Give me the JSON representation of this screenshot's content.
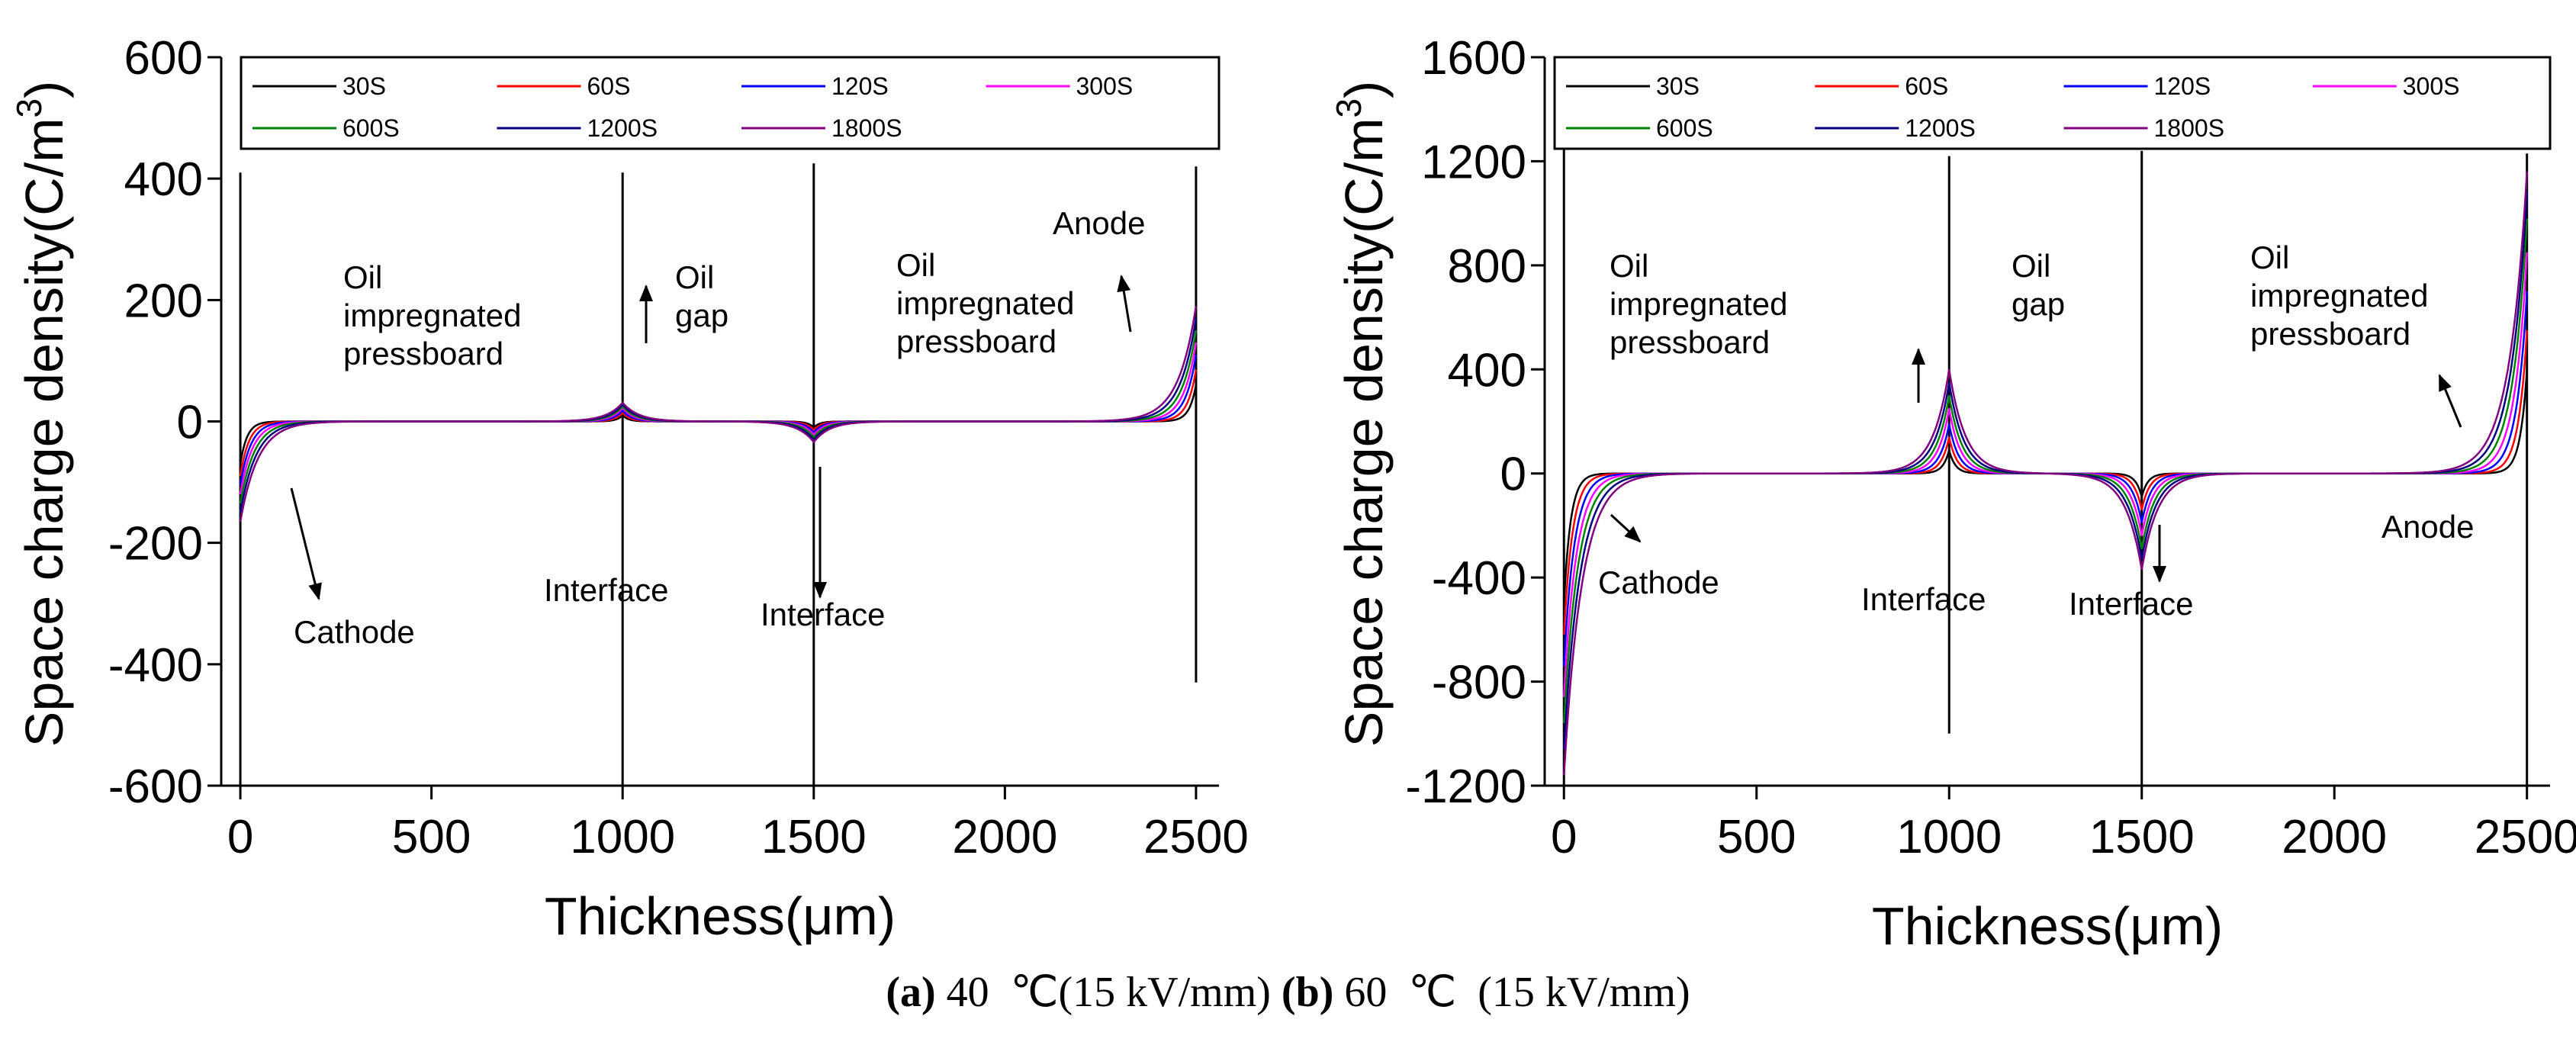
{
  "caption": {
    "a_label": "(a)",
    "a_text": " 40  ℃(15 kV/mm) ",
    "b_label": "(b)",
    "b_text": " 60  ℃  (15 kV/mm)"
  },
  "chart_data": [
    {
      "type": "line",
      "panel": "a",
      "xlabel": "Thickness(μm)",
      "ylabel": "Space charge density(C/m³)",
      "ylabel_base": "Space charge density(C/m",
      "ylabel_sup": "3",
      "ylabel_close": ")",
      "xlim": [
        -50,
        2560
      ],
      "ylim": [
        -600,
        600
      ],
      "xticks": [
        0,
        500,
        1000,
        1500,
        2000,
        2500
      ],
      "yticks": [
        600,
        400,
        200,
        0,
        -200,
        -400,
        -600
      ],
      "interfaces": [
        0,
        1000,
        1500,
        2500
      ],
      "boundary_lines": [
        {
          "x": 0,
          "y_from": -600,
          "y_to": 410
        },
        {
          "x": 1000,
          "y_from": -600,
          "y_to": 410
        },
        {
          "x": 1500,
          "y_from": -600,
          "y_to": 425
        },
        {
          "x": 2500,
          "y_from": -430,
          "y_to": 420
        }
      ],
      "peaks": [
        {
          "x": 0,
          "values": [
            -70,
            -90,
            -105,
            -120,
            -135,
            -150,
            -165
          ],
          "decay_side": "right"
        },
        {
          "x": 1000,
          "values": [
            10,
            14,
            18,
            22,
            25,
            28,
            31
          ],
          "decay_side": "both"
        },
        {
          "x": 1500,
          "values": [
            -10,
            -14,
            -18,
            -22,
            -26,
            -30,
            -34
          ],
          "decay_side": "both"
        },
        {
          "x": 2500,
          "values": [
            60,
            85,
            110,
            130,
            150,
            170,
            190
          ],
          "decay_side": "left"
        }
      ],
      "series": [
        {
          "name": "30S",
          "color": "#000000"
        },
        {
          "name": "60S",
          "color": "#ff0000"
        },
        {
          "name": "120S",
          "color": "#0000ff"
        },
        {
          "name": "300S",
          "color": "#ff00ff"
        },
        {
          "name": "600S",
          "color": "#008000"
        },
        {
          "name": "1200S",
          "color": "#000080"
        },
        {
          "name": "1800S",
          "color": "#800080"
        }
      ],
      "annotations": [
        {
          "id": "pressboard-left",
          "lines": [
            "Oil",
            "impregnated",
            "pressboard"
          ]
        },
        {
          "id": "oil-gap",
          "lines": [
            "Oil",
            "gap"
          ]
        },
        {
          "id": "pressboard-right",
          "lines": [
            "Oil",
            "impregnated",
            "pressboard"
          ]
        },
        {
          "id": "anode",
          "lines": [
            "Anode"
          ]
        },
        {
          "id": "cathode",
          "lines": [
            "Cathode"
          ]
        },
        {
          "id": "interface-1",
          "lines": [
            "Interface"
          ]
        },
        {
          "id": "interface-2",
          "lines": [
            "Interface"
          ]
        }
      ]
    },
    {
      "type": "line",
      "panel": "b",
      "xlabel": "Thickness(μm)",
      "ylabel": "Space charge density(C/m³)",
      "ylabel_base": "Space charge density(C/m",
      "ylabel_sup": "3",
      "ylabel_close": ")",
      "xlim": [
        -50,
        2560
      ],
      "ylim": [
        -1200,
        1600
      ],
      "xticks": [
        0,
        500,
        1000,
        1500,
        2000,
        2500
      ],
      "yticks": [
        1600,
        1200,
        800,
        400,
        0,
        -400,
        -800,
        -1200
      ],
      "interfaces": [
        0,
        1000,
        1500,
        2500
      ],
      "boundary_lines": [
        {
          "x": 0,
          "y_from": -1200,
          "y_to": 1250
        },
        {
          "x": 1000,
          "y_from": -1000,
          "y_to": 1220
        },
        {
          "x": 1500,
          "y_from": -1200,
          "y_to": 1240
        },
        {
          "x": 2500,
          "y_from": -1200,
          "y_to": 1230
        }
      ],
      "peaks": [
        {
          "x": 0,
          "values": [
            -500,
            -620,
            -740,
            -860,
            -960,
            -1060,
            -1160
          ],
          "decay_side": "right"
        },
        {
          "x": 1000,
          "values": [
            90,
            140,
            190,
            250,
            300,
            350,
            400
          ],
          "decay_side": "both"
        },
        {
          "x": 1500,
          "values": [
            -90,
            -140,
            -190,
            -240,
            -290,
            -330,
            -370
          ],
          "decay_side": "both"
        },
        {
          "x": 2500,
          "values": [
            400,
            550,
            700,
            850,
            980,
            1080,
            1160
          ],
          "decay_side": "left"
        }
      ],
      "series": [
        {
          "name": "30S",
          "color": "#000000"
        },
        {
          "name": "60S",
          "color": "#ff0000"
        },
        {
          "name": "120S",
          "color": "#0000ff"
        },
        {
          "name": "300S",
          "color": "#ff00ff"
        },
        {
          "name": "600S",
          "color": "#008000"
        },
        {
          "name": "1200S",
          "color": "#000080"
        },
        {
          "name": "1800S",
          "color": "#800080"
        }
      ],
      "annotations": [
        {
          "id": "pressboard-left",
          "lines": [
            "Oil",
            "impregnated",
            "pressboard"
          ]
        },
        {
          "id": "oil-gap",
          "lines": [
            "Oil",
            "gap"
          ]
        },
        {
          "id": "pressboard-right",
          "lines": [
            "Oil",
            "impregnated",
            "pressboard"
          ]
        },
        {
          "id": "anode",
          "lines": [
            "Anode"
          ]
        },
        {
          "id": "cathode",
          "lines": [
            "Cathode"
          ]
        },
        {
          "id": "interface-1",
          "lines": [
            "Interface"
          ]
        },
        {
          "id": "interface-2",
          "lines": [
            "Interface"
          ]
        }
      ]
    }
  ]
}
